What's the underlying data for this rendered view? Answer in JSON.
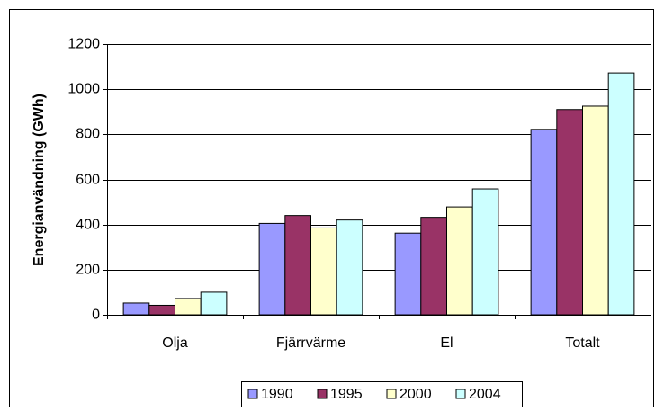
{
  "chart_data": {
    "type": "bar",
    "y_label": "Energianvändning (GWh)",
    "categories": [
      "Olja",
      "Fjärrvärme",
      "El",
      "Totalt"
    ],
    "series": [
      {
        "name": "1990",
        "color": "#9999ff",
        "values": [
          52,
          405,
          362,
          822
        ]
      },
      {
        "name": "1995",
        "color": "#993366",
        "values": [
          42,
          440,
          432,
          910
        ]
      },
      {
        "name": "2000",
        "color": "#ffffcc",
        "values": [
          72,
          385,
          478,
          925
        ]
      },
      {
        "name": "2004",
        "color": "#ccffff",
        "values": [
          100,
          420,
          558,
          1072
        ]
      }
    ],
    "ylim": [
      0,
      1200
    ],
    "yticks": [
      0,
      200,
      400,
      600,
      800,
      1000,
      1200
    ],
    "grid": true,
    "legend": "bottom"
  }
}
